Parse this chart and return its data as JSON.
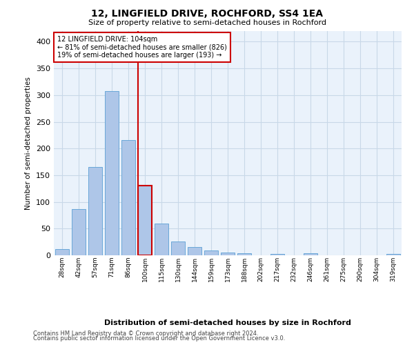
{
  "title": "12, LINGFIELD DRIVE, ROCHFORD, SS4 1EA",
  "subtitle": "Size of property relative to semi-detached houses in Rochford",
  "xlabel": "Distribution of semi-detached houses by size in Rochford",
  "ylabel": "Number of semi-detached properties",
  "footnote1": "Contains HM Land Registry data © Crown copyright and database right 2024.",
  "footnote2": "Contains public sector information licensed under the Open Government Licence v3.0.",
  "annotation_line1": "12 LINGFIELD DRIVE: 104sqm",
  "annotation_line2": "← 81% of semi-detached houses are smaller (826)",
  "annotation_line3": "19% of semi-detached houses are larger (193) →",
  "bar_labels": [
    "28sqm",
    "42sqm",
    "57sqm",
    "71sqm",
    "86sqm",
    "100sqm",
    "115sqm",
    "130sqm",
    "144sqm",
    "159sqm",
    "173sqm",
    "188sqm",
    "202sqm",
    "217sqm",
    "232sqm",
    "246sqm",
    "261sqm",
    "275sqm",
    "290sqm",
    "304sqm",
    "319sqm"
  ],
  "bar_values": [
    12,
    87,
    166,
    307,
    216,
    130,
    59,
    26,
    15,
    9,
    5,
    4,
    0,
    3,
    0,
    4,
    0,
    0,
    0,
    0,
    3
  ],
  "bar_color": "#aec6e8",
  "bar_edge_color": "#5a9fd4",
  "highlight_index": 5,
  "highlight_bar_edge_color": "#cc0000",
  "vline_color": "#cc0000",
  "grid_color": "#c8d8e8",
  "bg_color": "#eaf2fb",
  "ylim": [
    0,
    420
  ],
  "yticks": [
    0,
    50,
    100,
    150,
    200,
    250,
    300,
    350,
    400
  ]
}
